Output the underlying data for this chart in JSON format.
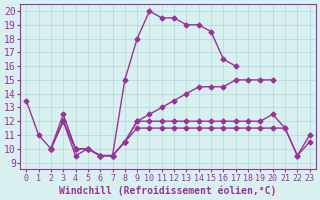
{
  "background_color": "#d8f0f0",
  "line_color": "#993399",
  "xlabel": "Windchill (Refroidissement éolien,°C)",
  "ylabel_ticks": [
    9,
    10,
    11,
    12,
    13,
    14,
    15,
    16,
    17,
    18,
    19,
    20
  ],
  "xticks": [
    0,
    1,
    2,
    3,
    4,
    5,
    6,
    7,
    8,
    9,
    10,
    11,
    12,
    13,
    14,
    15,
    16,
    17,
    18,
    19,
    20,
    21,
    22,
    23
  ],
  "xlim": [
    -0.5,
    23.5
  ],
  "ylim": [
    8.5,
    20.5
  ],
  "line1_x": [
    0,
    1,
    2,
    3,
    4,
    5,
    6,
    7,
    8,
    9,
    10,
    11,
    12,
    13,
    14,
    15,
    16,
    17,
    18,
    19,
    20,
    21,
    22,
    23
  ],
  "line1_y": [
    13.5,
    11.0,
    10.0,
    12.0,
    9.5,
    10.0,
    9.5,
    9.5,
    15.0,
    18.0,
    20.0,
    19.5,
    19.5,
    19.0,
    19.0,
    18.5,
    16.5,
    16.0,
    null,
    null,
    null,
    null,
    null,
    null
  ],
  "line2_x": [
    0,
    1,
    2,
    3,
    4,
    5,
    6,
    7,
    8,
    9,
    10,
    11,
    12,
    13,
    14,
    15,
    16,
    17,
    18,
    19,
    20,
    21,
    22,
    23
  ],
  "line2_y": [
    null,
    null,
    10.0,
    12.0,
    10.0,
    10.0,
    9.5,
    9.5,
    10.5,
    11.5,
    11.5,
    11.5,
    11.5,
    11.5,
    11.5,
    11.5,
    11.5,
    11.5,
    11.5,
    11.5,
    11.5,
    11.5,
    9.5,
    10.5
  ],
  "line3_x": [
    0,
    1,
    2,
    3,
    4,
    5,
    6,
    7,
    8,
    9,
    10,
    11,
    12,
    13,
    14,
    15,
    16,
    17,
    18,
    19,
    20,
    21,
    22,
    23
  ],
  "line3_y": [
    null,
    null,
    10.0,
    12.0,
    10.0,
    10.0,
    9.5,
    9.5,
    10.5,
    12.0,
    12.0,
    12.0,
    12.0,
    12.0,
    12.0,
    12.0,
    12.0,
    12.0,
    12.0,
    12.0,
    12.5,
    11.5,
    9.5,
    11.0
  ],
  "line4_x": [
    0,
    1,
    2,
    3,
    4,
    5,
    6,
    7,
    8,
    9,
    10,
    11,
    12,
    13,
    14,
    15,
    16,
    17,
    18,
    19,
    20,
    21,
    22,
    23
  ],
  "line4_y": [
    null,
    null,
    10.0,
    12.5,
    10.0,
    10.0,
    9.5,
    9.5,
    10.5,
    12.0,
    12.5,
    13.0,
    13.5,
    14.0,
    14.5,
    14.5,
    14.5,
    15.0,
    15.0,
    15.0,
    15.0,
    null,
    null,
    null
  ],
  "grid_color": "#b0d8d8",
  "font_color": "#993399",
  "font_size": 7,
  "marker": "D",
  "marker_size": 2.5,
  "linewidth": 1.0
}
